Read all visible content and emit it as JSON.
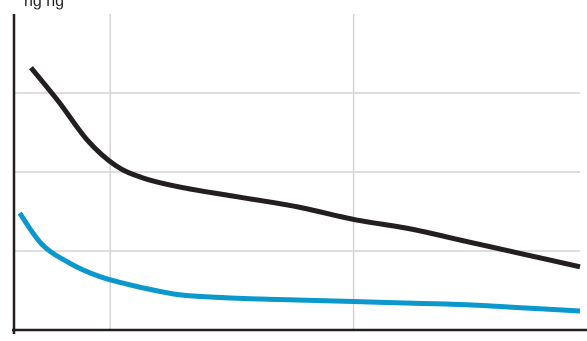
{
  "header": {
    "cropped_text": "ng   ng"
  },
  "chart_data": {
    "type": "line",
    "title": "",
    "xlabel": "",
    "ylabel": "",
    "x_range": [
      0,
      100
    ],
    "y_range": [
      0,
      100
    ],
    "x_gridlines": [
      17,
      60
    ],
    "y_gridlines": [
      25,
      50,
      75
    ],
    "grid": true,
    "series": [
      {
        "color": "#231f20",
        "x": [
          3,
          8,
          13,
          18,
          23,
          30,
          40,
          50,
          60,
          70,
          80,
          90,
          100
        ],
        "y": [
          83,
          72,
          60,
          52,
          48,
          45,
          42,
          39,
          35,
          32,
          28,
          24,
          20
        ]
      },
      {
        "color": "#0b98cc",
        "x": [
          1,
          5,
          10,
          15,
          20,
          25,
          30,
          40,
          50,
          60,
          70,
          80,
          90,
          100
        ],
        "y": [
          37,
          27,
          21,
          17,
          14.5,
          12.5,
          11,
          10,
          9.5,
          9,
          8.5,
          8,
          7,
          6
        ]
      }
    ],
    "axis_color": "#231f20",
    "grid_color": "#d3d4d6"
  }
}
